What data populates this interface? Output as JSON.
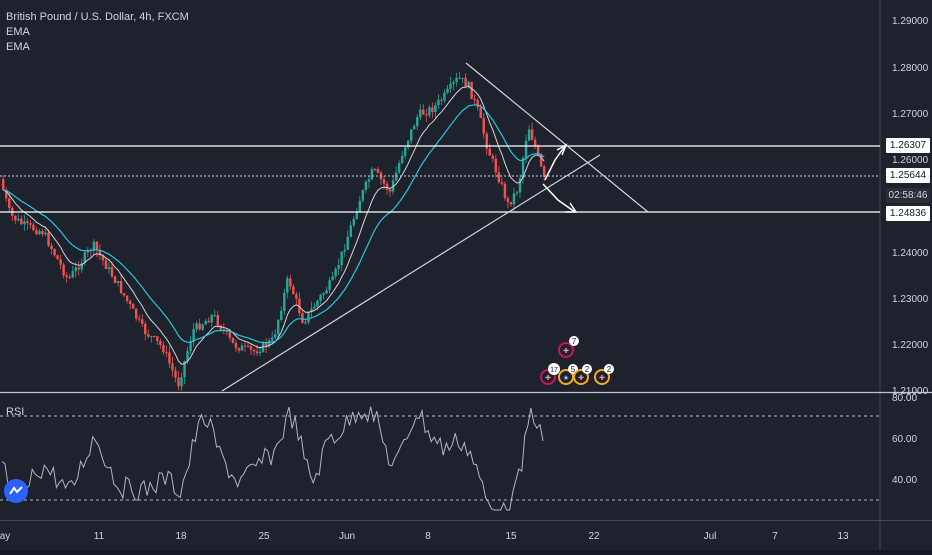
{
  "legend": {
    "title": "British Pound / U.S. Dollar, 4h, FXCM",
    "ind1": "EMA",
    "ind2": "EMA"
  },
  "rsi_label": "RSI",
  "price_tags": {
    "upper_line": "1.26307",
    "current": "1.25644",
    "countdown": "02:58:46",
    "lower_line": "1.24836"
  },
  "price_axis": [
    "1.29000",
    "1.28000",
    "1.27000",
    "1.26000",
    "1.24000",
    "1.23000",
    "1.22000",
    "1.21000"
  ],
  "rsi_axis": [
    "80.00",
    "60.00",
    "40.00"
  ],
  "time_axis": [
    "ay",
    "11",
    "18",
    "25",
    "Jun",
    "8",
    "15",
    "22",
    "Jul",
    "7",
    "13"
  ],
  "events": {
    "top": "7",
    "e1": "17",
    "e2": "5",
    "e3": "2",
    "e4": "2"
  },
  "colors": {
    "background": "#1e222d",
    "bull": "#26a69a",
    "bear": "#ef5350",
    "ema_fast": "#d1d4dc",
    "ema_slow": "#26c6da",
    "lines": "#ffffff"
  },
  "icons": [
    "tradingview-logo-icon",
    "flag-uk-icon",
    "flag-us-icon",
    "event-count-badge"
  ]
}
